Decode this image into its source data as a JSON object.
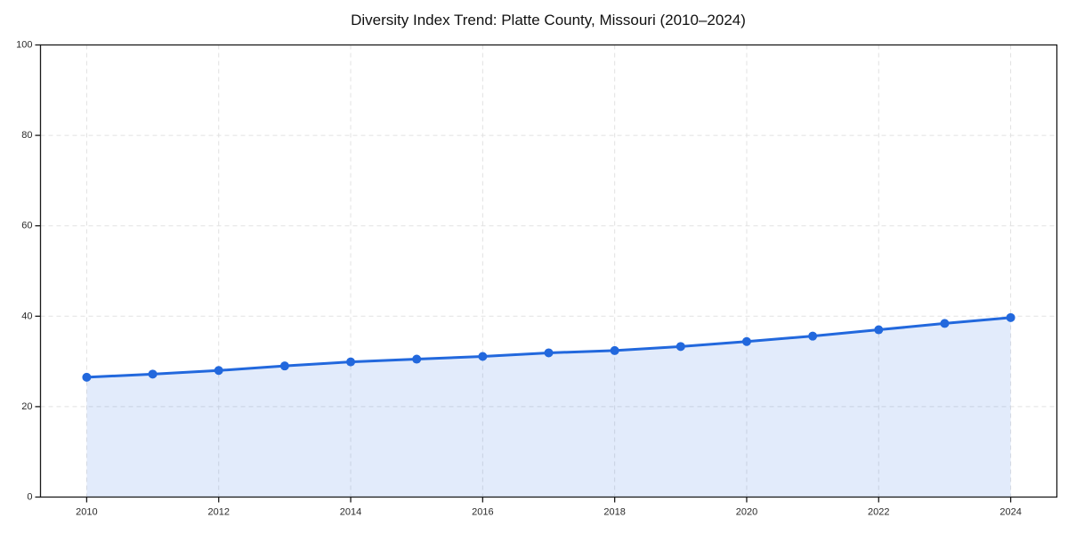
{
  "chart_data": {
    "type": "line",
    "title": "Diversity Index Trend: Platte County, Missouri (2010–2024)",
    "x": [
      2010,
      2011,
      2012,
      2013,
      2014,
      2015,
      2016,
      2017,
      2018,
      2019,
      2020,
      2021,
      2022,
      2023,
      2024
    ],
    "series": [
      {
        "name": "Diversity Index",
        "values": [
          26.5,
          27.2,
          28.0,
          29.0,
          29.9,
          30.5,
          31.1,
          31.9,
          32.4,
          33.3,
          34.4,
          35.6,
          37.0,
          38.4,
          39.7
        ]
      }
    ],
    "xlabel": "",
    "ylabel": "",
    "xlim": [
      2009.3,
      2024.7
    ],
    "ylim": [
      0,
      100
    ],
    "yticks": [
      0,
      20,
      40,
      60,
      80,
      100
    ],
    "xticks": [
      2010,
      2012,
      2014,
      2016,
      2018,
      2020,
      2022,
      2024
    ],
    "grid": true,
    "legend": false,
    "area_fill": true,
    "marker": "circle",
    "style": {
      "line_color": "#2268dd",
      "marker_color": "#2268dd",
      "fill_color": "rgba(34, 104, 221, 0.13)",
      "grid_color": "#e2e2e2",
      "axis_color": "#1a1a1a",
      "tick_label_color": "#2a2a2a",
      "title_color": "#111111"
    }
  }
}
